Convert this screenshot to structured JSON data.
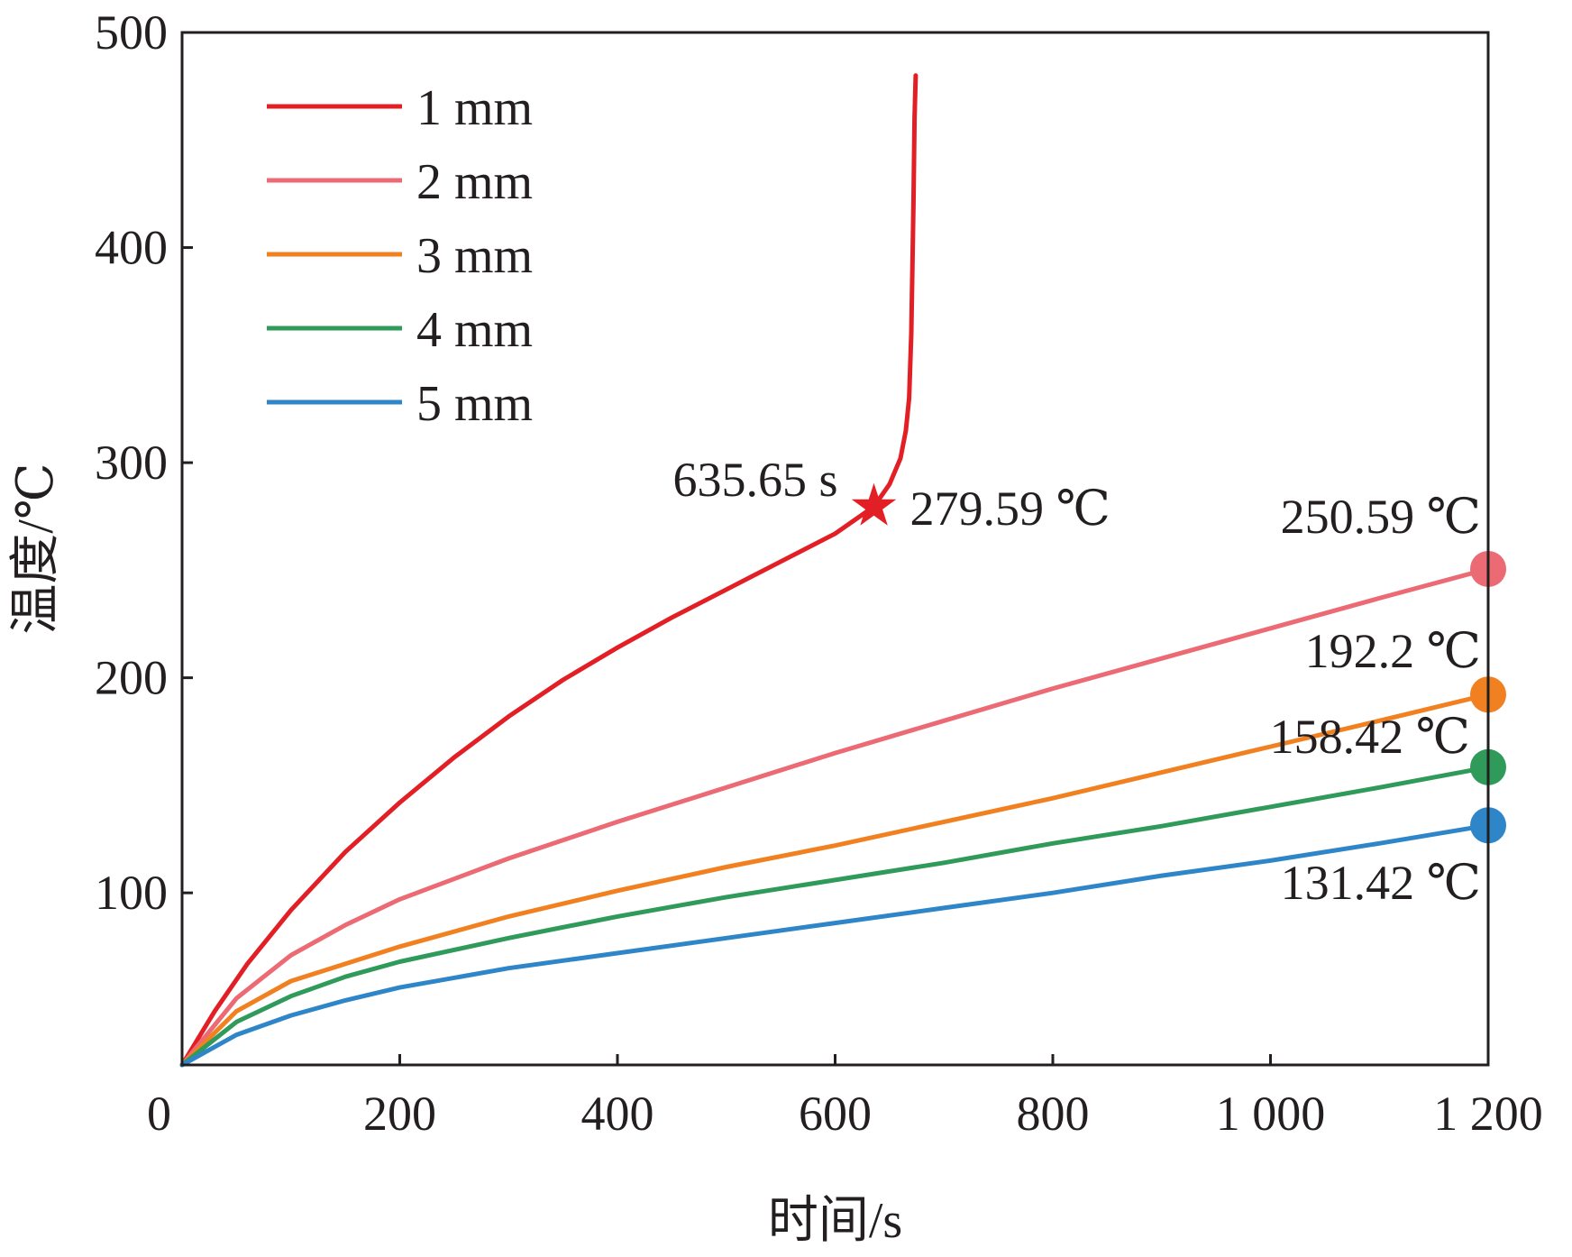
{
  "chart_data": {
    "type": "line",
    "title": "",
    "xlabel": "时间/s",
    "ylabel": "温度/℃",
    "xlim": [
      0,
      1200
    ],
    "ylim": [
      20,
      500
    ],
    "x_ticks": [
      0,
      200,
      400,
      600,
      800,
      1000,
      1200
    ],
    "x_tick_labels": [
      "0",
      "200",
      "400",
      "600",
      "800",
      "1 000",
      "1 200"
    ],
    "y_ticks": [
      100,
      200,
      300,
      400,
      500
    ],
    "y_tick_labels": [
      "100",
      "200",
      "300",
      "400",
      "500"
    ],
    "grid": false,
    "legend": "top-left",
    "series": [
      {
        "name": "1 mm",
        "color": "#e31f26",
        "x": [
          0,
          30,
          60,
          100,
          150,
          200,
          250,
          300,
          350,
          400,
          450,
          500,
          550,
          600,
          635.65,
          650,
          660,
          665,
          668,
          670,
          672,
          673,
          674
        ],
        "y": [
          20,
          45,
          67,
          92,
          119,
          142,
          163,
          182,
          199,
          214,
          228,
          241,
          254,
          267,
          279.59,
          290,
          302,
          315,
          330,
          360,
          420,
          460,
          480
        ]
      },
      {
        "name": "2 mm",
        "color": "#ec6a73",
        "x": [
          0,
          50,
          100,
          150,
          200,
          300,
          400,
          500,
          600,
          700,
          800,
          900,
          1000,
          1100,
          1200
        ],
        "y": [
          20,
          51,
          71,
          85,
          97,
          116,
          133,
          149,
          165,
          180,
          195,
          209,
          223,
          237,
          250.59
        ]
      },
      {
        "name": "3 mm",
        "color": "#f18120",
        "x": [
          0,
          50,
          100,
          150,
          200,
          300,
          400,
          500,
          600,
          700,
          800,
          900,
          1000,
          1100,
          1200
        ],
        "y": [
          20,
          45,
          59,
          67,
          75,
          89,
          101,
          112,
          122,
          133,
          144,
          156,
          168,
          180,
          192.2
        ]
      },
      {
        "name": "4 mm",
        "color": "#2f9a59",
        "x": [
          0,
          50,
          100,
          150,
          200,
          300,
          400,
          500,
          600,
          700,
          800,
          900,
          1000,
          1100,
          1200
        ],
        "y": [
          20,
          40,
          52,
          61,
          68,
          79,
          89,
          98,
          106,
          114,
          123,
          131,
          140,
          149,
          158.42
        ]
      },
      {
        "name": "5 mm",
        "color": "#2e86c9",
        "x": [
          0,
          50,
          100,
          150,
          200,
          300,
          400,
          500,
          600,
          700,
          800,
          900,
          1000,
          1100,
          1200
        ],
        "y": [
          20,
          34,
          43,
          50,
          56,
          65,
          72,
          79,
          86,
          93,
          100,
          108,
          115,
          123,
          131.42
        ]
      }
    ],
    "annotations": [
      {
        "series": "1 mm",
        "marker": "star",
        "x": 635.65,
        "y": 279.59,
        "color": "#e31f26",
        "label_time": "635.65 s",
        "label_temp": "279.59 ℃"
      },
      {
        "series": "2 mm",
        "marker": "circle",
        "x": 1200,
        "y": 250.59,
        "color": "#ec6a73",
        "label": "250.59 ℃"
      },
      {
        "series": "3 mm",
        "marker": "circle",
        "x": 1200,
        "y": 192.2,
        "color": "#f18120",
        "label": "192.2 ℃"
      },
      {
        "series": "4 mm",
        "marker": "circle",
        "x": 1200,
        "y": 158.42,
        "color": "#2f9a59",
        "label": "158.42 ℃"
      },
      {
        "series": "5 mm",
        "marker": "circle",
        "x": 1200,
        "y": 131.42,
        "color": "#2e86c9",
        "label": "131.42 ℃"
      }
    ]
  }
}
